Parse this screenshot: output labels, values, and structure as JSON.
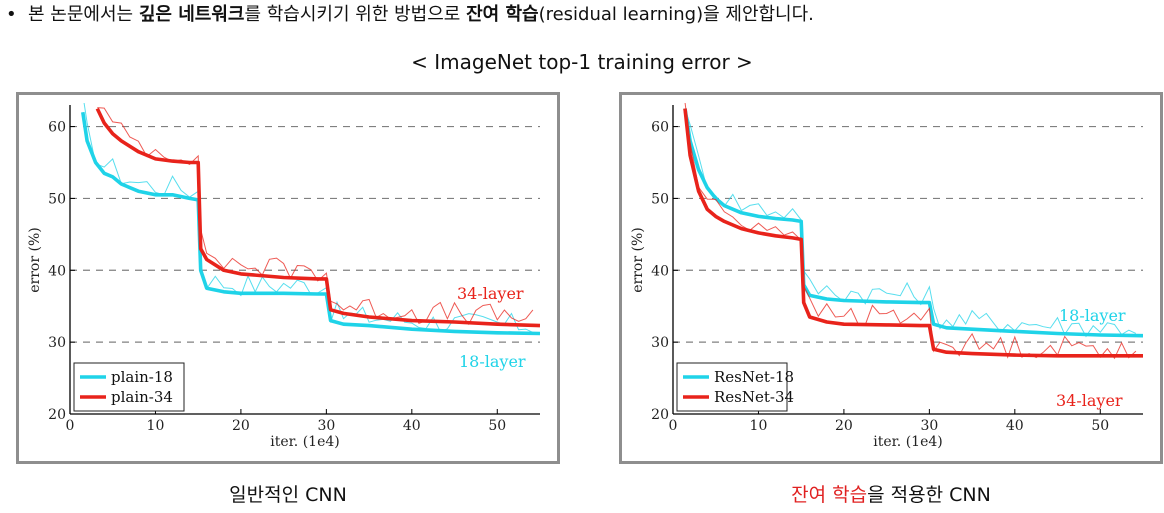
{
  "bullet": {
    "marker": "•",
    "parts": [
      "본 논문에서는 ",
      "깊은 네트워크",
      "를 학습시키기 위한 방법으로 ",
      "잔여 학습",
      "(residual learning)을 제안합니다."
    ]
  },
  "figure_title": "< ImageNet top-1 training error >",
  "captions": {
    "left": "일반적인 CNN",
    "right_highlight": "잔여 학습",
    "right_rest": "을 적용한 CNN"
  },
  "colors": {
    "cyan": "#1fd3e8",
    "red": "#e8231b",
    "accent_red": "#e02020"
  },
  "chart_data": [
    {
      "type": "line",
      "title": "",
      "xlabel": "iter. (1e4)",
      "ylabel": "error (%)",
      "xlim": [
        0,
        55
      ],
      "ylim": [
        20,
        63
      ],
      "xticks": [
        0,
        10,
        20,
        30,
        40,
        50
      ],
      "yticks": [
        20,
        30,
        40,
        50,
        60
      ],
      "grid": "horizontal dashed",
      "legend_position": "bottom-left",
      "annotations": [
        {
          "text": "34-layer",
          "color": "red"
        },
        {
          "text": "18-layer",
          "color": "cyan"
        }
      ],
      "series": [
        {
          "name": "plain-18",
          "color": "cyan",
          "x": [
            1.5,
            2,
            3,
            4,
            5,
            6,
            8,
            10,
            12,
            14,
            15,
            15.3,
            16,
            18,
            20,
            25,
            29,
            30,
            30.5,
            32,
            35,
            40,
            45,
            50,
            55
          ],
          "y": [
            62,
            58,
            55,
            53.5,
            53,
            52,
            51,
            50.5,
            50.5,
            50,
            49.8,
            40,
            37.5,
            37,
            36.8,
            36.8,
            36.7,
            36.7,
            33,
            32.5,
            32.3,
            31.8,
            31.5,
            31.3,
            31.2
          ]
        },
        {
          "name": "plain-34",
          "color": "red",
          "x": [
            3.2,
            4,
            5,
            6,
            8,
            10,
            12,
            14,
            15,
            15.3,
            16,
            18,
            20,
            25,
            29,
            30,
            30.5,
            32,
            35,
            40,
            45,
            50,
            55
          ],
          "y": [
            62.5,
            60.5,
            59,
            58,
            56.5,
            55.5,
            55.2,
            55,
            55,
            43,
            41.5,
            40,
            39.5,
            39,
            38.8,
            38.8,
            34.5,
            34,
            33.5,
            33,
            32.8,
            32.5,
            32.3
          ]
        }
      ]
    },
    {
      "type": "line",
      "title": "",
      "xlabel": "iter. (1e4)",
      "ylabel": "error (%)",
      "xlim": [
        0,
        55
      ],
      "ylim": [
        20,
        63
      ],
      "xticks": [
        0,
        10,
        20,
        30,
        40,
        50
      ],
      "yticks": [
        20,
        30,
        40,
        50,
        60
      ],
      "grid": "horizontal dashed",
      "legend_position": "bottom-left",
      "annotations": [
        {
          "text": "18-layer",
          "color": "cyan"
        },
        {
          "text": "34-layer",
          "color": "red"
        }
      ],
      "series": [
        {
          "name": "ResNet-18",
          "color": "cyan",
          "x": [
            1.4,
            2,
            3,
            4,
            5,
            6,
            8,
            10,
            12,
            14,
            15,
            15.3,
            16,
            18,
            20,
            25,
            29,
            30,
            30.5,
            32,
            35,
            40,
            45,
            50,
            55
          ],
          "y": [
            62.5,
            58,
            54,
            51.5,
            50,
            49,
            48,
            47.5,
            47.2,
            47,
            46.8,
            38,
            36.5,
            36,
            35.8,
            35.6,
            35.5,
            35.5,
            32.5,
            32,
            31.8,
            31.5,
            31.2,
            31.0,
            30.9
          ]
        },
        {
          "name": "ResNet-34",
          "color": "red",
          "x": [
            1.4,
            2,
            3,
            4,
            5,
            6,
            8,
            10,
            12,
            14,
            15,
            15.3,
            16,
            18,
            20,
            25,
            29,
            30,
            30.5,
            32,
            35,
            40,
            45,
            50,
            55
          ],
          "y": [
            62.5,
            56,
            51,
            48.5,
            47.5,
            46.8,
            45.8,
            45.2,
            44.8,
            44.5,
            44.3,
            35.5,
            33.5,
            32.8,
            32.5,
            32.4,
            32.3,
            32.3,
            29,
            28.6,
            28.4,
            28.2,
            28.1,
            28.1,
            28.1
          ]
        }
      ]
    }
  ]
}
